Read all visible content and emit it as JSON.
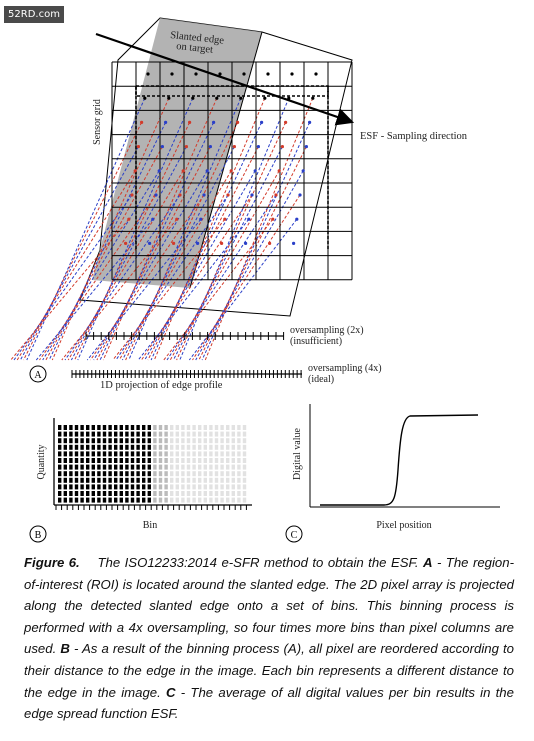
{
  "watermark": "52RD.com",
  "panel_a": {
    "label": "A",
    "slanted_edge_label_line1": "Slanted edge",
    "slanted_edge_label_line2": "on target",
    "sensor_grid_label": "Sensor grid",
    "esf_direction_label": "ESF - Sampling direction",
    "oversampling_2x_line1": "oversampling (2x)",
    "oversampling_2x_line2": "(insufficient)",
    "oversampling_4x_line1": "oversampling (4x)",
    "oversampling_4x_line2": "(ideal)",
    "projection_label": "1D projection of edge profile"
  },
  "panel_b": {
    "label": "B",
    "ylabel": "Quantity",
    "xlabel": "Bin"
  },
  "panel_c": {
    "label": "C",
    "ylabel": "Digital value",
    "xlabel": "Pixel position"
  },
  "caption": {
    "figure_label": "Figure 6.",
    "text_1": "The ISO12233:2014 e-SFR method to obtain the ESF.",
    "marker_a": "A",
    "text_2": "- The region-of-interest (ROI) is located around the slanted edge. The 2D pixel array is projected along the detected slanted edge onto a set of bins. This binning process is performed with a 4x oversampling, so four times more bins than pixel columns are used.",
    "marker_b": "B",
    "text_3": "- As a result of the binning process (A), all pixel are reordered according to their distance to the edge in the image. Each bin represents a different distance to the edge in the image.",
    "marker_c": "C",
    "text_4": "- The average of all digital values per bin results in the edge spread function ESF."
  },
  "colors": {
    "red": "#d23a2a",
    "blue": "#2a3fc8",
    "grid": "#000000",
    "edge_shade": "#9a9a9a"
  }
}
